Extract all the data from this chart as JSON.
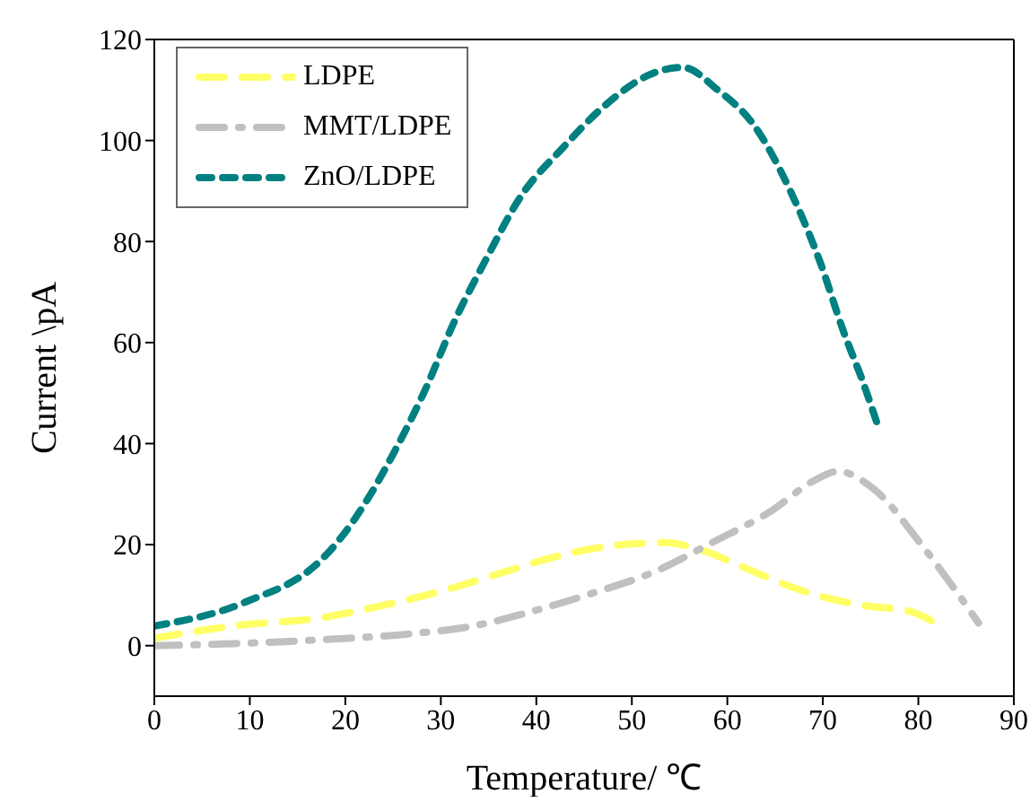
{
  "chart_data": {
    "type": "line",
    "xlabel": "Temperature/ ℃",
    "ylabel": "Current \\pA",
    "xlim": [
      0,
      90
    ],
    "xticks": [
      0,
      10,
      20,
      30,
      40,
      50,
      60,
      70,
      80,
      90
    ],
    "ylim": [
      -10,
      120
    ],
    "yticks": [
      0,
      20,
      40,
      60,
      80,
      100,
      120
    ],
    "legend": "top left",
    "marker": "none",
    "series": [
      {
        "name": "LDPE",
        "color": "#ffff66",
        "line_style": "dashed",
        "x": [
          0,
          8.3,
          17.7,
          24,
          30.2,
          36.5,
          42.8,
          49,
          53.4,
          57.8,
          61.6,
          67.8,
          74.1,
          79.1,
          82.3
        ],
        "values": [
          1.5,
          3.9,
          5.6,
          8,
          10.9,
          14.5,
          18,
          20,
          20.4,
          18.6,
          15.6,
          10.9,
          8,
          6.8,
          3.9
        ]
      },
      {
        "name": "MMT/LDPE",
        "color": "#c0c0c0",
        "line_style": "dashdot",
        "x": [
          0,
          8.3,
          17.7,
          27.1,
          33.4,
          39.6,
          45.9,
          52.2,
          58.4,
          64.7,
          69.1,
          71.6,
          75.4,
          80.4,
          84.1,
          86.3
        ],
        "values": [
          0,
          0.4,
          1.2,
          2.4,
          3.9,
          6.8,
          10.4,
          14.5,
          20.4,
          26.8,
          32.7,
          34.5,
          30.9,
          19.8,
          10.4,
          4.5
        ]
      },
      {
        "name": "ZnO/LDPE",
        "color": "#008080",
        "line_style": "dotted",
        "x": [
          0,
          9.5,
          17.7,
          19.6,
          22,
          25.2,
          28.3,
          31.5,
          34.6,
          38.4,
          42.8,
          47.1,
          52.2,
          55.3,
          59,
          62.8,
          66.6,
          69.7,
          72.2,
          74.1,
          75.7
        ],
        "values": [
          3.9,
          8.6,
          17.4,
          21.5,
          28,
          38.6,
          50.4,
          64.5,
          76,
          89,
          98.6,
          106.8,
          113.3,
          114.5,
          110,
          103,
          90,
          76,
          62,
          52.7,
          43.9
        ]
      }
    ]
  }
}
